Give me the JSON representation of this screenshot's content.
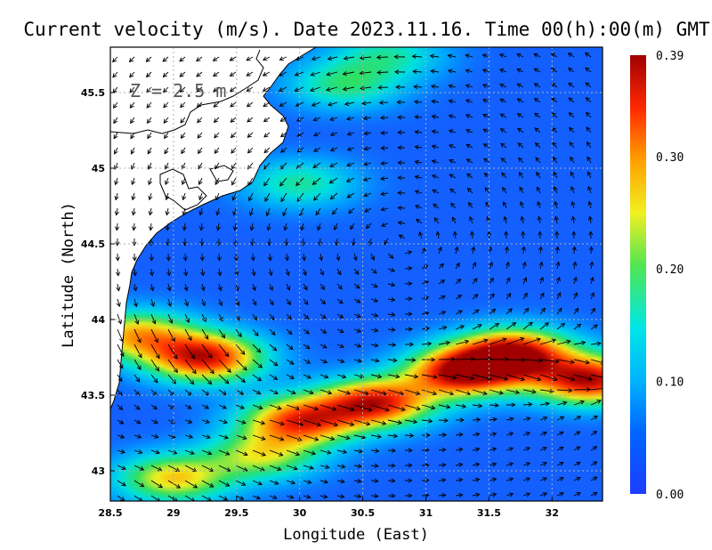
{
  "chart_data": {
    "type": "heatmap",
    "title": "Current velocity (m/s). Date 2023.11.16. Time 00(h):00(m) GMT",
    "xlabel": "Longitude (East)",
    "ylabel": "Latitude (North)",
    "depth_label": "Z = 2.5 m",
    "xlim": [
      28.5,
      32.4
    ],
    "ylim": [
      42.8,
      45.8
    ],
    "x_ticks": [
      "28.5",
      "29",
      "29.5",
      "30",
      "30.5",
      "31",
      "31.5",
      "32"
    ],
    "x_tick_values": [
      28.5,
      29,
      29.5,
      30,
      30.5,
      31,
      31.5,
      32
    ],
    "y_ticks": [
      "43",
      "43.5",
      "44",
      "44.5",
      "45",
      "45.5"
    ],
    "y_tick_values": [
      43,
      43.5,
      44,
      44.5,
      45,
      45.5
    ],
    "grid": true,
    "colorbar": {
      "min": 0.0,
      "max": 0.39,
      "ticks": [
        "0.00",
        "0.10",
        "0.20",
        "0.30",
        "0.39"
      ],
      "tick_values": [
        0.0,
        0.1,
        0.2,
        0.3,
        0.39
      ]
    },
    "speed_features": [
      {
        "lon": 31.3,
        "lat": 43.65,
        "speed": 0.38
      },
      {
        "lon": 31.7,
        "lat": 43.78,
        "speed": 0.37
      },
      {
        "lon": 30.6,
        "lat": 43.45,
        "speed": 0.35
      },
      {
        "lon": 30.0,
        "lat": 43.33,
        "speed": 0.32
      },
      {
        "lon": 32.3,
        "lat": 43.6,
        "speed": 0.37
      },
      {
        "lon": 29.25,
        "lat": 43.75,
        "speed": 0.36
      },
      {
        "lon": 28.7,
        "lat": 43.9,
        "speed": 0.25
      },
      {
        "lon": 29.0,
        "lat": 42.95,
        "speed": 0.24
      },
      {
        "lon": 29.7,
        "lat": 43.1,
        "speed": 0.2
      },
      {
        "lon": 30.35,
        "lat": 45.55,
        "speed": 0.15
      },
      {
        "lon": 30.0,
        "lat": 44.9,
        "speed": 0.14
      },
      {
        "lon": 30.7,
        "lat": 45.75,
        "speed": 0.13
      }
    ],
    "colors": {
      "land": "#ffffff",
      "coast": "#000000",
      "grid": "#b0b0b0",
      "arrows": "#000000",
      "colormap": [
        "#1e3cff",
        "#00a0ff",
        "#00e0e0",
        "#30e060",
        "#f0f020",
        "#ff9000",
        "#ff2800",
        "#a00000"
      ]
    }
  }
}
